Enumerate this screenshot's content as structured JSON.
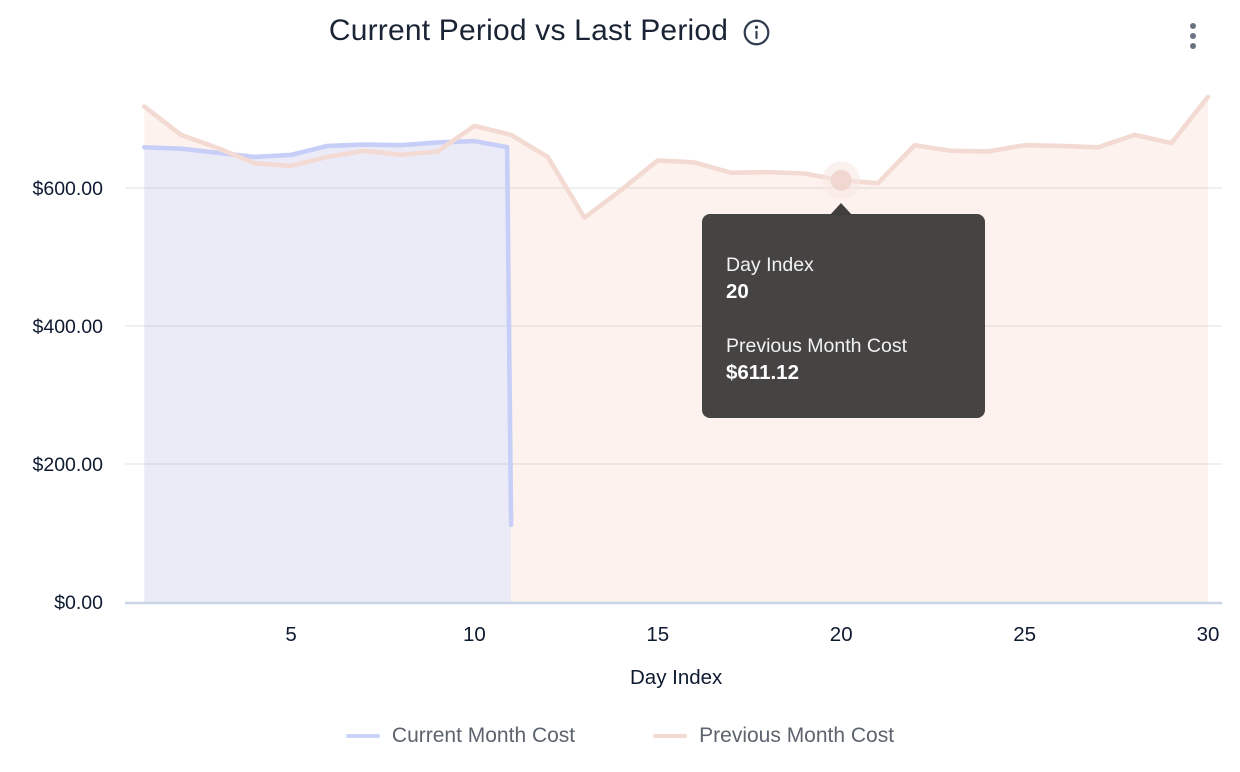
{
  "header": {
    "title": "Current Period vs Last Period",
    "info_icon": "info-circle",
    "menu_icon": "kebab-vertical-menu"
  },
  "tooltip": {
    "x_label": "Day Index",
    "x_value": "20",
    "series_label": "Previous Month Cost",
    "series_value": "$611.12"
  },
  "legend": {
    "items": [
      {
        "label": "Current Month Cost",
        "color": "#ccd3f8"
      },
      {
        "label": "Previous Month Cost",
        "color": "#f3dad3"
      }
    ]
  },
  "colors": {
    "title_text": "#1b2434",
    "axis_text": "#0e1a30",
    "legend_text": "#5d646e",
    "current_line": "#c7cff8",
    "current_fill": "#ebebf8",
    "previous_line": "#f3dad3",
    "previous_fill": "#fdf2ee",
    "marker_dot": "#f0d8d1",
    "marker_halo": "#f8e8e3",
    "gridline": "rgba(120,120,135,0.14)",
    "axis_line": "#cbd5e8",
    "tooltip_bg": "#3c3939"
  },
  "chart_data": {
    "type": "area",
    "title": "Current Period vs Last Period",
    "xlabel": "Day Index",
    "ylabel": "",
    "xlim": [
      1,
      30
    ],
    "ylim": [
      0,
      750
    ],
    "grid": true,
    "legend_position": "bottom",
    "x_ticks": [
      5,
      10,
      15,
      20,
      25,
      30
    ],
    "y_ticks": [
      {
        "value": 0,
        "label": "$0.00"
      },
      {
        "value": 200,
        "label": "$200.00"
      },
      {
        "value": 400,
        "label": "$400.00"
      },
      {
        "value": 600,
        "label": "$600.00"
      }
    ],
    "x": [
      1,
      2,
      3,
      4,
      5,
      6,
      7,
      8,
      9,
      10,
      11,
      12,
      13,
      14,
      15,
      16,
      17,
      18,
      19,
      20,
      21,
      22,
      23,
      24,
      25,
      26,
      27,
      28,
      29,
      30
    ],
    "series": [
      {
        "name": "Current Month Cost",
        "values": [
          659,
          657,
          651,
          645,
          648,
          661,
          663,
          662,
          666,
          668,
          112
        ]
      },
      {
        "name": "Previous Month Cost",
        "values": [
          718,
          677,
          658,
          636,
          632,
          645,
          654,
          648,
          653,
          690,
          677,
          645,
          557,
          597,
          640,
          637,
          622,
          623,
          621,
          611.12,
          607,
          662,
          654,
          653,
          662,
          661,
          659,
          677,
          665,
          732
        ]
      }
    ],
    "highlight": {
      "series": "Previous Month Cost",
      "day": 20,
      "value": 611.12
    }
  }
}
